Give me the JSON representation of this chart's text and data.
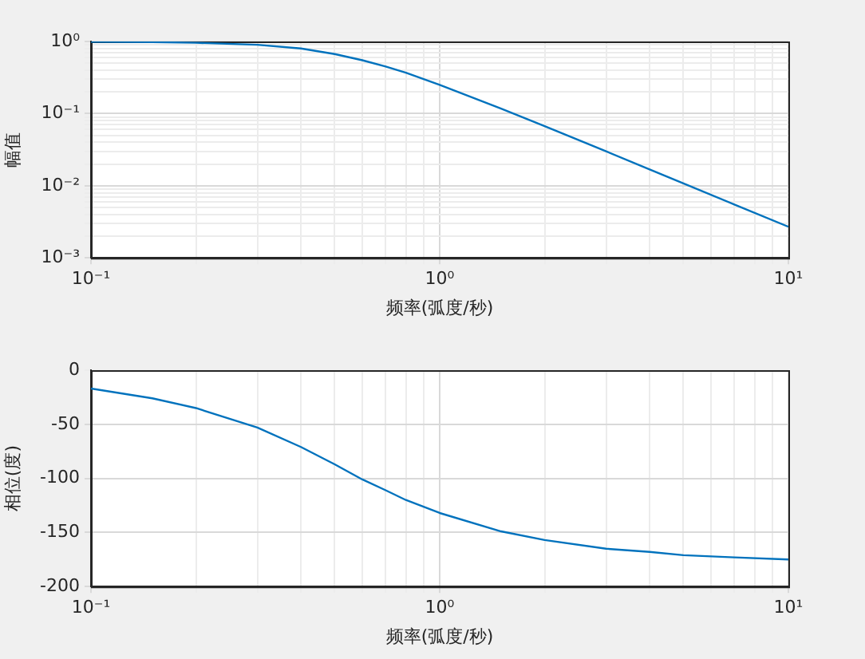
{
  "chart_data": [
    {
      "type": "line",
      "xlabel": "频率(弧度/秒)",
      "ylabel": "幅值",
      "log": "xy",
      "grid": true,
      "marker": "none",
      "xlim": [
        0.1,
        10
      ],
      "ylim": [
        0.001,
        1
      ],
      "xticks": [
        {
          "value": 0.1,
          "label": "10⁻¹"
        },
        {
          "value": 0.2,
          "label": null
        },
        {
          "value": 0.3,
          "label": null
        },
        {
          "value": 0.4,
          "label": null
        },
        {
          "value": 0.5,
          "label": null
        },
        {
          "value": 0.6,
          "label": null
        },
        {
          "value": 0.7,
          "label": null
        },
        {
          "value": 0.8,
          "label": null
        },
        {
          "value": 0.9,
          "label": null
        },
        {
          "value": 1,
          "label": "10⁰"
        },
        {
          "value": 2,
          "label": null
        },
        {
          "value": 3,
          "label": null
        },
        {
          "value": 4,
          "label": null
        },
        {
          "value": 5,
          "label": null
        },
        {
          "value": 6,
          "label": null
        },
        {
          "value": 7,
          "label": null
        },
        {
          "value": 8,
          "label": null
        },
        {
          "value": 9,
          "label": null
        },
        {
          "value": 10,
          "label": "10¹"
        }
      ],
      "yticks": [
        {
          "value": 0.001,
          "label": "10⁻³"
        },
        {
          "value": 0.002,
          "label": null
        },
        {
          "value": 0.003,
          "label": null
        },
        {
          "value": 0.004,
          "label": null
        },
        {
          "value": 0.005,
          "label": null
        },
        {
          "value": 0.006,
          "label": null
        },
        {
          "value": 0.007,
          "label": null
        },
        {
          "value": 0.008,
          "label": null
        },
        {
          "value": 0.009,
          "label": null
        },
        {
          "value": 0.01,
          "label": "10⁻²"
        },
        {
          "value": 0.02,
          "label": null
        },
        {
          "value": 0.03,
          "label": null
        },
        {
          "value": 0.04,
          "label": null
        },
        {
          "value": 0.05,
          "label": null
        },
        {
          "value": 0.06,
          "label": null
        },
        {
          "value": 0.07,
          "label": null
        },
        {
          "value": 0.08,
          "label": null
        },
        {
          "value": 0.09,
          "label": null
        },
        {
          "value": 0.1,
          "label": "10⁻¹"
        },
        {
          "value": 0.2,
          "label": null
        },
        {
          "value": 0.3,
          "label": null
        },
        {
          "value": 0.4,
          "label": null
        },
        {
          "value": 0.5,
          "label": null
        },
        {
          "value": 0.6,
          "label": null
        },
        {
          "value": 0.7,
          "label": null
        },
        {
          "value": 0.8,
          "label": null
        },
        {
          "value": 0.9,
          "label": null
        },
        {
          "value": 1,
          "label": "10⁰"
        }
      ],
      "x": [
        0.1,
        0.15,
        0.2,
        0.3,
        0.4,
        0.5,
        0.6,
        0.7,
        0.8,
        1,
        1.5,
        2,
        3,
        4,
        5,
        7,
        10
      ],
      "series": [
        {
          "color": "#0072bd",
          "values": [
            0.99,
            0.98,
            0.96,
            0.9,
            0.8,
            0.67,
            0.55,
            0.45,
            0.37,
            0.25,
            0.117,
            0.067,
            0.03,
            0.0168,
            0.0108,
            0.0055,
            0.0027
          ]
        }
      ]
    },
    {
      "type": "line",
      "xlabel": "频率(弧度/秒)",
      "ylabel": "相位(度)",
      "log": "x",
      "grid": true,
      "marker": "none",
      "xlim": [
        0.1,
        10
      ],
      "ylim": [
        -200,
        0
      ],
      "xticks": [
        {
          "value": 0.1,
          "label": "10⁻¹"
        },
        {
          "value": 0.2,
          "label": null
        },
        {
          "value": 0.3,
          "label": null
        },
        {
          "value": 0.4,
          "label": null
        },
        {
          "value": 0.5,
          "label": null
        },
        {
          "value": 0.6,
          "label": null
        },
        {
          "value": 0.7,
          "label": null
        },
        {
          "value": 0.8,
          "label": null
        },
        {
          "value": 0.9,
          "label": null
        },
        {
          "value": 1,
          "label": "10⁰"
        },
        {
          "value": 2,
          "label": null
        },
        {
          "value": 3,
          "label": null
        },
        {
          "value": 4,
          "label": null
        },
        {
          "value": 5,
          "label": null
        },
        {
          "value": 6,
          "label": null
        },
        {
          "value": 7,
          "label": null
        },
        {
          "value": 8,
          "label": null
        },
        {
          "value": 9,
          "label": null
        },
        {
          "value": 10,
          "label": "10¹"
        }
      ],
      "yticks": [
        -200,
        -150,
        -100,
        -50,
        0
      ],
      "x": [
        0.1,
        0.15,
        0.2,
        0.3,
        0.4,
        0.5,
        0.6,
        0.7,
        0.8,
        1,
        1.5,
        2,
        3,
        4,
        5,
        7,
        10
      ],
      "series": [
        {
          "color": "#0072bd",
          "values": [
            -17,
            -26,
            -35,
            -53,
            -71,
            -87,
            -101,
            -111,
            -120,
            -132,
            -149,
            -157,
            -165,
            -168,
            -171,
            -173,
            -175
          ]
        }
      ]
    }
  ]
}
